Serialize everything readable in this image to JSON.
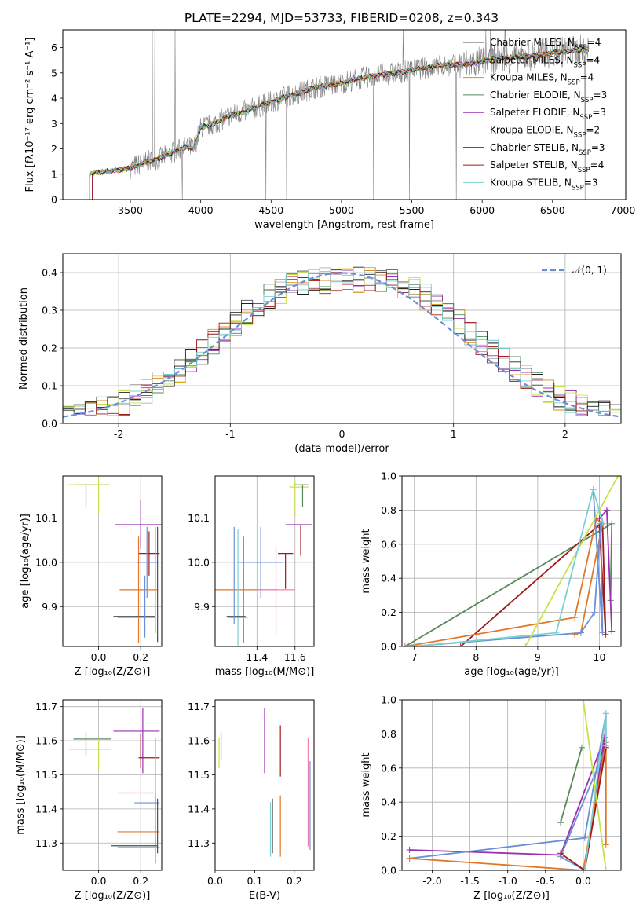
{
  "title": "PLATE=2294, MJD=53733, FIBERID=0208, z=0.343",
  "colors": {
    "chabrier_miles": "#4f4f4f",
    "salpeter_miles": "#b0b0b0",
    "kroupa_miles": "#e08a1e",
    "chabrier_elodie": "#4f8a5a",
    "salpeter_elodie": "#9a30b0",
    "kroupa_elodie": "#c8e04a",
    "chabrier_stelib": "#222222",
    "salpeter_stelib": "#a01818",
    "kroupa_stelib": "#7ad0d0",
    "data": "#808080",
    "normal": "#6a8fd8",
    "blue": "#6a8fd8",
    "orange": "#e07828",
    "pink": "#f080b0",
    "green": "#5a8a5a",
    "purple": "#9a30b0",
    "lime": "#c8e04a",
    "darkred": "#a01818",
    "cyan": "#7ad0d0",
    "grid": "#b0b0b0"
  },
  "chart_data": [
    {
      "id": "spectrum",
      "type": "line",
      "xlabel": "wavelength [Angstrom, rest frame]",
      "ylabel": "Flux [fλ10⁻¹⁷ erg cm⁻² s⁻¹ A⁻¹]",
      "xlim": [
        3020,
        7020
      ],
      "ylim": [
        0,
        6.7
      ],
      "xticks": [
        3500,
        4000,
        4500,
        5000,
        5500,
        6000,
        6500,
        7000
      ],
      "yticks": [
        0,
        1,
        2,
        3,
        4,
        5,
        6
      ],
      "legend": [
        "Chabrier MILES, N_SSP=4",
        "Salpeter MILES, N_SSP=4",
        "Kroupa MILES, N_SSP=4",
        "Chabrier ELODIE, N_SSP=3",
        "Salpeter ELODIE, N_SSP=3",
        "Kroupa ELODIE, N_SSP=2",
        "Chabrier STELIB, N_SSP=3",
        "Salpeter STELIB, N_SSP=4",
        "Kroupa STELIB, N_SSP=3"
      ],
      "legend_entries": [
        {
          "label": "Chabrier MILES, N",
          "sub": "SSP",
          "tail": "=4"
        },
        {
          "label": "Salpeter MILES, N",
          "sub": "SSP",
          "tail": "=4"
        },
        {
          "label": "Kroupa MILES, N",
          "sub": "SSP",
          "tail": "=4"
        },
        {
          "label": "Chabrier ELODIE, N",
          "sub": "SSP",
          "tail": "=3"
        },
        {
          "label": "Salpeter ELODIE, N",
          "sub": "SSP",
          "tail": "=3"
        },
        {
          "label": "Kroupa ELODIE, N",
          "sub": "SSP",
          "tail": "=2"
        },
        {
          "label": "Chabrier STELIB, N",
          "sub": "SSP",
          "tail": "=3"
        },
        {
          "label": "Salpeter STELIB, N",
          "sub": "SSP",
          "tail": "=4"
        },
        {
          "label": "Kroupa STELIB, N",
          "sub": "SSP",
          "tail": "=3"
        }
      ],
      "legend_placement": "right",
      "grid": false,
      "model_continuum": {
        "x": [
          3200,
          3300,
          3400,
          3500,
          3600,
          3700,
          3800,
          3900,
          3950,
          4000,
          4100,
          4200,
          4300,
          4400,
          4500,
          4600,
          4700,
          4800,
          4900,
          5000,
          5100,
          5200,
          5300,
          5400,
          5500,
          5600,
          5700,
          5800,
          5900,
          6000,
          6100,
          6200,
          6300,
          6400,
          6500,
          6600,
          6700,
          6760
        ],
        "y": [
          1.0,
          1.1,
          1.15,
          1.25,
          1.45,
          1.6,
          1.85,
          2.1,
          2.0,
          2.85,
          3.0,
          3.3,
          3.45,
          3.65,
          3.85,
          4.05,
          4.2,
          4.4,
          4.5,
          4.6,
          4.75,
          4.85,
          4.95,
          5.0,
          5.1,
          5.2,
          5.3,
          5.3,
          5.35,
          5.45,
          5.55,
          5.6,
          5.65,
          5.7,
          5.8,
          5.85,
          5.9,
          5.95
        ]
      },
      "data_range": [
        3500,
        6760
      ]
    },
    {
      "id": "residuals",
      "type": "line",
      "xlabel": "(data-model)/error",
      "ylabel": "Normed distribution",
      "xlim": [
        -2.5,
        2.5
      ],
      "ylim": [
        0,
        0.45
      ],
      "xticks": [
        -2,
        -1,
        0,
        1,
        2
      ],
      "yticks": [
        0.0,
        0.1,
        0.2,
        0.3,
        0.4
      ],
      "legend": [
        "𝒩(0, 1)"
      ],
      "legend_placement": "top-right",
      "grid": true,
      "hist_bins": 50
    },
    {
      "id": "age_vs_Z",
      "type": "scatter",
      "xlabel": "Z [log₁₀(Z/Z⊙)]",
      "ylabel": "age  [log₁₀(age/yr)]",
      "xlim": [
        -0.17,
        0.3
      ],
      "ylim": [
        9.81,
        10.195
      ],
      "xticks": [
        0.0,
        0.2
      ],
      "yticks": [
        9.9,
        10.0,
        10.1
      ],
      "grid": true
    },
    {
      "id": "age_vs_mass",
      "type": "scatter",
      "xlabel": "mass [log₁₀(M/M⊙)]",
      "xlim": [
        11.18,
        11.7
      ],
      "ylim": [
        9.81,
        10.195
      ],
      "xticks": [
        11.4,
        11.6
      ],
      "yticks": [
        9.9,
        10.0,
        10.1
      ],
      "grid": true
    },
    {
      "id": "massweight_vs_age",
      "type": "line",
      "xlabel": "age  [log₁₀(age/yr)]",
      "ylabel": "mass weight",
      "xlim": [
        6.8,
        10.35
      ],
      "ylim": [
        0,
        1.0
      ],
      "xticks": [
        7,
        8,
        9,
        10
      ],
      "yticks": [
        0.0,
        0.2,
        0.4,
        0.6,
        0.8,
        1.0
      ],
      "grid": true
    },
    {
      "id": "mass_vs_Z",
      "type": "scatter",
      "xlabel": "Z [log₁₀(Z/Z⊙)]",
      "ylabel": "mass [log₁₀(M/M⊙)]",
      "xlim": [
        -0.17,
        0.3
      ],
      "ylim": [
        11.22,
        11.72
      ],
      "xticks": [
        0.0,
        0.2
      ],
      "yticks": [
        11.3,
        11.4,
        11.5,
        11.6,
        11.7
      ],
      "grid": true
    },
    {
      "id": "mass_vs_EBV",
      "type": "scatter",
      "xlabel": "E(B-V)",
      "xlim": [
        0.0,
        0.25
      ],
      "ylim": [
        11.22,
        11.72
      ],
      "xticks": [
        0.0,
        0.1,
        0.2
      ],
      "yticks": [
        11.3,
        11.4,
        11.5,
        11.6,
        11.7
      ],
      "grid": false
    },
    {
      "id": "massweight_vs_Z",
      "type": "line",
      "xlabel": "Z [log₁₀(Z/Z⊙)]",
      "ylabel": "mass weight",
      "xlim": [
        -2.4,
        0.5
      ],
      "ylim": [
        0,
        1.0
      ],
      "xticks": [
        -2.0,
        -1.5,
        -1.0,
        -0.5,
        0.0
      ],
      "yticks": [
        0.0,
        0.2,
        0.4,
        0.6,
        0.8,
        1.0
      ],
      "grid": true
    }
  ],
  "panels": {
    "age_Z": {
      "points": [
        {
          "c": "green",
          "x": -0.03,
          "y": 10.175,
          "xe": 0.08,
          "ye": 0.0
        },
        {
          "c": "lime",
          "x": -0.05,
          "y": 10.175,
          "xe": 0.1,
          "ye": 0.0
        },
        {
          "c": "green",
          "x": -0.06,
          "y": 10.15,
          "xe": 0.0,
          "ye": 0.025
        },
        {
          "c": "lime",
          "x": 0.0,
          "y": 10.15,
          "xe": 0.0,
          "ye": 0.04
        },
        {
          "c": "purple",
          "x": 0.2,
          "y": 10.085,
          "xe": 0.12,
          "ye": 0.055
        },
        {
          "c": "darkred",
          "x": 0.24,
          "y": 10.02,
          "xe": 0.05,
          "ye": 0.05
        },
        {
          "c": "blue",
          "x": 0.23,
          "y": 10.0,
          "xe": 0.05,
          "ye": 0.08
        },
        {
          "c": "orange",
          "x": 0.19,
          "y": 9.938,
          "xe": 0.09,
          "ye": 0.12
        },
        {
          "c": "pink",
          "x": 0.27,
          "y": 9.96,
          "xe": 0.0,
          "ye": 0.12
        },
        {
          "c": "cyan",
          "x": 0.18,
          "y": 9.875,
          "xe": 0.09,
          "ye": 0.0
        },
        {
          "c": "chabrier_miles",
          "x": 0.17,
          "y": 9.878,
          "xe": 0.1,
          "ye": 0.0
        },
        {
          "c": "chabrier_miles",
          "x": 0.28,
          "y": 9.95,
          "xe": 0.0,
          "ye": 0.13
        },
        {
          "c": "blue",
          "x": 0.22,
          "y": 9.9,
          "xe": 0.0,
          "ye": 0.07
        }
      ]
    },
    "age_mass": {
      "points": [
        {
          "c": "green",
          "x": 11.63,
          "y": 10.175,
          "xe": 0.04,
          "ye": 0.0
        },
        {
          "c": "lime",
          "x": 11.62,
          "y": 10.17,
          "xe": 0.05,
          "ye": 0.0
        },
        {
          "c": "green",
          "x": 11.64,
          "y": 10.15,
          "xe": 0.0,
          "ye": 0.025
        },
        {
          "c": "lime",
          "x": 11.6,
          "y": 10.145,
          "xe": 0.0,
          "ye": 0.04
        },
        {
          "c": "purple",
          "x": 11.62,
          "y": 10.085,
          "xe": 0.07,
          "ye": 0.0
        },
        {
          "c": "darkred",
          "x": 11.63,
          "y": 10.05,
          "xe": 0.0,
          "ye": 0.035
        },
        {
          "c": "darkred",
          "x": 11.55,
          "y": 10.02,
          "xe": 0.04,
          "ye": 0.0
        },
        {
          "c": "darkred",
          "x": 11.55,
          "y": 9.98,
          "xe": 0.0,
          "ye": 0.04
        },
        {
          "c": "blue",
          "x": 11.42,
          "y": 10.0,
          "xe": 0.12,
          "ye": 0.08
        },
        {
          "c": "orange",
          "x": 11.33,
          "y": 9.938,
          "xe": 0.17,
          "ye": 0.12
        },
        {
          "c": "pink",
          "x": 11.5,
          "y": 9.938,
          "xe": 0.1,
          "ye": 0.1
        },
        {
          "c": "cyan",
          "x": 11.3,
          "y": 9.875,
          "xe": 0.05,
          "ye": 0.2
        },
        {
          "c": "chabrier_miles",
          "x": 11.29,
          "y": 9.878,
          "xe": 0.05,
          "ye": 0.0
        },
        {
          "c": "blue",
          "x": 11.28,
          "y": 9.97,
          "xe": 0.0,
          "ye": 0.11
        }
      ]
    },
    "mw_age": {
      "series": [
        {
          "c": "green",
          "x": [
            6.85,
            10.2,
            10.18
          ],
          "y": [
            0.0,
            0.72,
            0.27
          ]
        },
        {
          "c": "darkred",
          "x": [
            7.75,
            10.05,
            10.1,
            10.0
          ],
          "y": [
            0.0,
            0.73,
            0.07,
            0.7
          ]
        },
        {
          "c": "orange",
          "x": [
            6.85,
            9.6,
            9.95,
            10.05,
            9.7,
            9.6
          ],
          "y": [
            0.0,
            0.17,
            0.75,
            0.72,
            0.08,
            0.07
          ]
        },
        {
          "c": "blue",
          "x": [
            6.95,
            9.7,
            9.92,
            10.02,
            10.05,
            9.9
          ],
          "y": [
            0.0,
            0.08,
            0.2,
            0.72,
            0.08,
            0.92
          ]
        },
        {
          "c": "purple",
          "x": [
            10.0,
            10.12,
            10.2
          ],
          "y": [
            0.75,
            0.8,
            0.09
          ]
        },
        {
          "c": "lime",
          "x": [
            8.8,
            10.3
          ],
          "y": [
            0.0,
            1.0
          ]
        },
        {
          "c": "cyan",
          "x": [
            7.0,
            9.3,
            9.9,
            10.05
          ],
          "y": [
            0.0,
            0.08,
            0.92,
            0.73
          ]
        }
      ]
    },
    "mass_Z": {
      "points": [
        {
          "c": "green",
          "x": -0.03,
          "y": 11.605,
          "xe": 0.09,
          "ye": 0.0
        },
        {
          "c": "green",
          "x": -0.06,
          "y": 11.59,
          "xe": 0.0,
          "ye": 0.035
        },
        {
          "c": "lime",
          "x": -0.04,
          "y": 11.575,
          "xe": 0.1,
          "ye": 0.0
        },
        {
          "c": "lime",
          "x": 0.0,
          "y": 11.56,
          "xe": 0.0,
          "ye": 0.045
        },
        {
          "c": "purple",
          "x": 0.18,
          "y": 11.628,
          "xe": 0.11,
          "ye": 0.0
        },
        {
          "c": "purple",
          "x": 0.21,
          "y": 11.6,
          "xe": 0.0,
          "ye": 0.095
        },
        {
          "c": "darkred",
          "x": 0.24,
          "y": 11.55,
          "xe": 0.05,
          "ye": 0.0
        },
        {
          "c": "darkred",
          "x": 0.2,
          "y": 11.57,
          "xe": 0.0,
          "ye": 0.05
        },
        {
          "c": "pink",
          "x": 0.18,
          "y": 11.447,
          "xe": 0.09,
          "ye": 0.0
        },
        {
          "c": "pink",
          "x": 0.27,
          "y": 11.45,
          "xe": 0.0,
          "ye": 0.16
        },
        {
          "c": "blue",
          "x": 0.23,
          "y": 11.418,
          "xe": 0.06,
          "ye": 0.0
        },
        {
          "c": "orange",
          "x": 0.19,
          "y": 11.333,
          "xe": 0.1,
          "ye": 0.0
        },
        {
          "c": "orange",
          "x": 0.27,
          "y": 11.34,
          "xe": 0.0,
          "ye": 0.1
        },
        {
          "c": "cyan",
          "x": 0.19,
          "y": 11.288,
          "xe": 0.1,
          "ye": 0.0
        },
        {
          "c": "chabrier_miles",
          "x": 0.17,
          "y": 11.292,
          "xe": 0.11,
          "ye": 0.0
        },
        {
          "c": "chabrier_miles",
          "x": 0.28,
          "y": 11.35,
          "xe": 0.0,
          "ye": 0.08
        }
      ]
    },
    "mass_ebv": {
      "points": [
        {
          "c": "green",
          "x": 0.015,
          "y": 11.585,
          "xe": 0.0,
          "ye": 0.04
        },
        {
          "c": "lime",
          "x": 0.01,
          "y": 11.565,
          "xe": 0.0,
          "ye": 0.045
        },
        {
          "c": "purple",
          "x": 0.125,
          "y": 11.6,
          "xe": 0.0,
          "ye": 0.095
        },
        {
          "c": "darkred",
          "x": 0.165,
          "y": 11.57,
          "xe": 0.0,
          "ye": 0.075
        },
        {
          "c": "orange",
          "x": 0.165,
          "y": 11.35,
          "xe": 0.0,
          "ye": 0.09
        },
        {
          "c": "pink",
          "x": 0.235,
          "y": 11.45,
          "xe": 0.0,
          "ye": 0.16
        },
        {
          "c": "blue",
          "x": 0.24,
          "y": 11.41,
          "xe": 0.0,
          "ye": 0.13
        },
        {
          "c": "cyan",
          "x": 0.14,
          "y": 11.34,
          "xe": 0.0,
          "ye": 0.08
        },
        {
          "c": "chabrier_miles",
          "x": 0.145,
          "y": 11.35,
          "xe": 0.0,
          "ye": 0.08
        }
      ]
    },
    "mw_Z": {
      "series": [
        {
          "c": "green",
          "x": [
            -0.3,
            -0.02
          ],
          "y": [
            0.28,
            0.72
          ]
        },
        {
          "c": "purple",
          "x": [
            -2.3,
            -0.3,
            0.3,
            0.02,
            0.28
          ],
          "y": [
            0.12,
            0.09,
            0.8,
            0.0,
            0.78
          ]
        },
        {
          "c": "blue",
          "x": [
            -2.3,
            0.02,
            0.3,
            0.3,
            -0.3,
            0.02
          ],
          "y": [
            0.07,
            0.19,
            0.92,
            0.72,
            0.08,
            0.0
          ]
        },
        {
          "c": "orange",
          "x": [
            -2.3,
            0.0,
            0.3,
            0.3
          ],
          "y": [
            0.07,
            0.0,
            0.75,
            0.15
          ]
        },
        {
          "c": "darkred",
          "x": [
            -0.3,
            0.02,
            0.3
          ],
          "y": [
            0.1,
            0.0,
            0.72
          ]
        },
        {
          "c": "lime",
          "x": [
            0.0,
            0.3
          ],
          "y": [
            1.0,
            0.0
          ]
        },
        {
          "c": "cyan",
          "x": [
            0.02,
            0.3,
            0.3
          ],
          "y": [
            0.0,
            0.92,
            0.73
          ]
        }
      ]
    }
  }
}
